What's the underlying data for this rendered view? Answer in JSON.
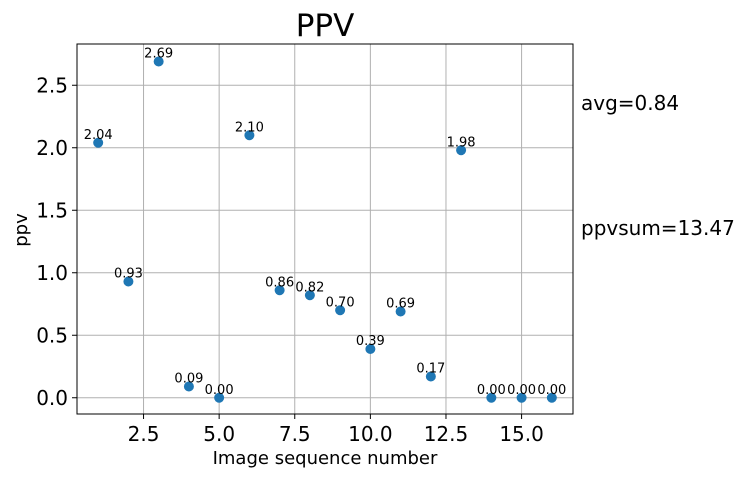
{
  "chart_data": {
    "type": "scatter",
    "title": "PPV",
    "xlabel": "Image sequence number",
    "ylabel": "ppv",
    "xlim": [
      0.3,
      16.7
    ],
    "ylim": [
      -0.13,
      2.83
    ],
    "grid": true,
    "marker_color": "#1f77b4",
    "x_ticks": [
      "2.5",
      "5.0",
      "7.5",
      "10.0",
      "12.5",
      "15.0"
    ],
    "y_ticks": [
      "0.0",
      "0.5",
      "1.0",
      "1.5",
      "2.0",
      "2.5"
    ],
    "points": [
      {
        "x": 1,
        "y": 2.04,
        "label": "2.04"
      },
      {
        "x": 2,
        "y": 0.93,
        "label": "0.93"
      },
      {
        "x": 3,
        "y": 2.69,
        "label": "2.69"
      },
      {
        "x": 4,
        "y": 0.09,
        "label": "0.09"
      },
      {
        "x": 5,
        "y": 0.0,
        "label": "0.00"
      },
      {
        "x": 6,
        "y": 2.1,
        "label": "2.10"
      },
      {
        "x": 7,
        "y": 0.86,
        "label": "0.86"
      },
      {
        "x": 8,
        "y": 0.82,
        "label": "0.82"
      },
      {
        "x": 9,
        "y": 0.7,
        "label": "0.70"
      },
      {
        "x": 10,
        "y": 0.39,
        "label": "0.39"
      },
      {
        "x": 11,
        "y": 0.69,
        "label": "0.69"
      },
      {
        "x": 12,
        "y": 0.17,
        "label": "0.17"
      },
      {
        "x": 13,
        "y": 1.98,
        "label": "1.98"
      },
      {
        "x": 14,
        "y": 0.0,
        "label": "0.00"
      },
      {
        "x": 15,
        "y": 0.0,
        "label": "0.00"
      },
      {
        "x": 16,
        "y": 0.0,
        "label": "0.00"
      }
    ],
    "annotations": [
      "avg=0.84",
      "ppvsum=13.47"
    ]
  }
}
